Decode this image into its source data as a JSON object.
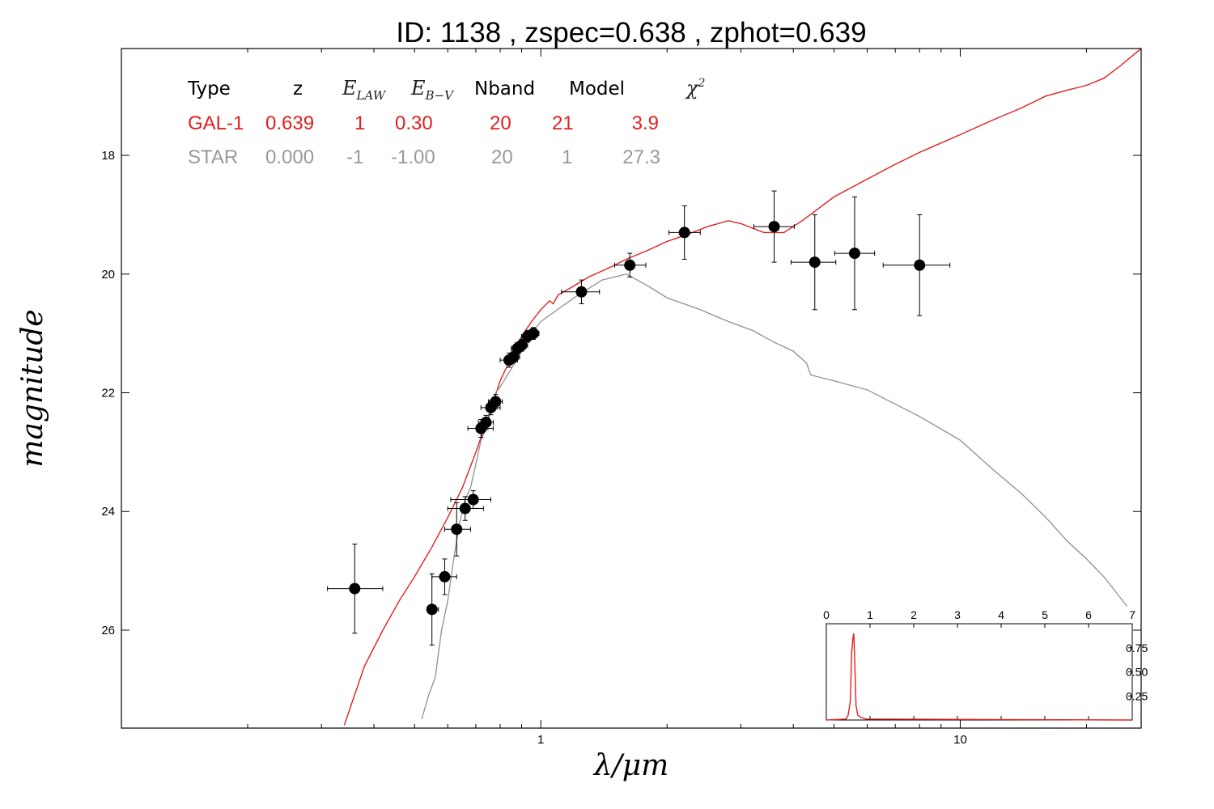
{
  "chart_data": {
    "type": "scatter",
    "title": "ID:  1138  , zspec=0.638 , zphot=0.639",
    "xlabel": "λ/μm",
    "ylabel": "magnitude",
    "xscale": "log",
    "xlim": [
      0.1,
      27
    ],
    "ylim": [
      27.65,
      16.2
    ],
    "y_inverted": true,
    "x_ticks": [
      1,
      10
    ],
    "x_tick_labels": [
      "1",
      "10"
    ],
    "y_ticks": [
      18,
      20,
      22,
      24,
      26
    ],
    "y_tick_labels": [
      "18",
      "20",
      "22",
      "24",
      "26"
    ],
    "grid": false,
    "colors": {
      "galaxy": "#e02020",
      "star": "#909090",
      "points": "#000000"
    },
    "fit_table": {
      "headers": [
        "Type",
        "z",
        "E_LAW",
        "E_B-V",
        "Nband",
        "Model",
        "χ2"
      ],
      "rows": [
        {
          "type": "GAL-1",
          "z": "0.639",
          "elaw": "1",
          "ebv": "0.30",
          "nband": "20",
          "model": "21",
          "chi2": "3.9",
          "color": "#e02020"
        },
        {
          "type": "STAR",
          "z": "0.000",
          "elaw": "-1",
          "ebv": "-1.00",
          "nband": "20",
          "model": "1",
          "chi2": "27.3",
          "color": "#999999"
        }
      ]
    },
    "series": [
      {
        "kind": "photometry",
        "points": [
          {
            "x": 0.36,
            "y": 25.3,
            "xerr": [
              0.31,
              0.42
            ],
            "yerr": 0.75
          },
          {
            "x": 0.55,
            "y": 25.65,
            "xerr": [
              0.54,
              0.57
            ],
            "yerr": 0.6
          },
          {
            "x": 0.59,
            "y": 25.1,
            "xerr": [
              0.55,
              0.63
            ],
            "yerr": 0.3
          },
          {
            "x": 0.63,
            "y": 24.3,
            "xerr": [
              0.59,
              0.68
            ],
            "yerr": 0.45
          },
          {
            "x": 0.66,
            "y": 23.95,
            "xerr": [
              0.6,
              0.73
            ],
            "yerr": 0.2
          },
          {
            "x": 0.69,
            "y": 23.8,
            "xerr": [
              0.61,
              0.76
            ],
            "yerr": 0.15
          },
          {
            "x": 0.72,
            "y": 22.6,
            "xerr": [
              0.67,
              0.77
            ],
            "yerr": 0.15
          },
          {
            "x": 0.74,
            "y": 22.5,
            "xerr": [
              0.71,
              0.77
            ],
            "yerr": 0.12
          },
          {
            "x": 0.76,
            "y": 22.25,
            "xerr": [
              0.72,
              0.8
            ],
            "yerr": 0.12
          },
          {
            "x": 0.78,
            "y": 22.15,
            "xerr": [
              0.75,
              0.81
            ],
            "yerr": 0.12
          },
          {
            "x": 0.84,
            "y": 21.45,
            "xerr": [
              0.8,
              0.88
            ],
            "yerr": 0.12
          },
          {
            "x": 0.86,
            "y": 21.4,
            "xerr": [
              0.83,
              0.89
            ],
            "yerr": 0.1
          },
          {
            "x": 0.88,
            "y": 21.25,
            "xerr": [
              0.85,
              0.91
            ],
            "yerr": 0.1
          },
          {
            "x": 0.9,
            "y": 21.2,
            "xerr": [
              0.87,
              0.93
            ],
            "yerr": 0.1
          },
          {
            "x": 0.93,
            "y": 21.05,
            "xerr": [
              0.9,
              0.96
            ],
            "yerr": 0.1
          },
          {
            "x": 0.96,
            "y": 21.0,
            "xerr": [
              0.93,
              0.99
            ],
            "yerr": 0.1
          },
          {
            "x": 1.25,
            "y": 20.3,
            "xerr": [
              1.12,
              1.38
            ],
            "yerr": 0.2
          },
          {
            "x": 1.63,
            "y": 19.85,
            "xerr": [
              1.5,
              1.78
            ],
            "yerr": 0.2
          },
          {
            "x": 2.2,
            "y": 19.3,
            "xerr": [
              2.02,
              2.4
            ],
            "yerr": 0.45
          },
          {
            "x": 3.6,
            "y": 19.2,
            "xerr": [
              3.22,
              4.02
            ],
            "yerr": 0.6
          },
          {
            "x": 4.5,
            "y": 19.8,
            "xerr": [
              3.95,
              5.05
            ],
            "yerr": 0.8
          },
          {
            "x": 5.6,
            "y": 19.65,
            "xerr": [
              5.02,
              6.25
            ],
            "yerr": 0.95
          },
          {
            "x": 8.0,
            "y": 19.85,
            "xerr": [
              6.55,
              9.45
            ],
            "yerr": 0.85
          }
        ]
      },
      {
        "kind": "model",
        "model_type": "galaxy",
        "color": "#e02020",
        "x": [
          0.34,
          0.38,
          0.42,
          0.46,
          0.5,
          0.55,
          0.6,
          0.65,
          0.7,
          0.75,
          0.8,
          0.85,
          0.9,
          0.95,
          1.0,
          1.05,
          1.07,
          1.1,
          1.2,
          1.3,
          1.45,
          1.6,
          1.8,
          2.0,
          2.2,
          2.5,
          2.8,
          3.0,
          3.4,
          3.8,
          4.2,
          5.0,
          6.0,
          7.0,
          8.0,
          10,
          12,
          14,
          16,
          18,
          20,
          22,
          24,
          27
        ],
        "y": [
          27.6,
          26.6,
          26.0,
          25.5,
          25.1,
          24.6,
          24.1,
          23.6,
          23.0,
          22.4,
          21.8,
          21.4,
          21.05,
          20.8,
          20.6,
          20.45,
          20.5,
          20.35,
          20.2,
          20.05,
          19.9,
          19.75,
          19.6,
          19.45,
          19.35,
          19.2,
          19.1,
          19.15,
          19.3,
          19.3,
          19.1,
          18.7,
          18.4,
          18.15,
          17.95,
          17.65,
          17.4,
          17.2,
          17.0,
          16.9,
          16.82,
          16.7,
          16.5,
          16.2
        ]
      },
      {
        "kind": "model",
        "model_type": "star",
        "color": "#909090",
        "x": [
          0.52,
          0.54,
          0.56,
          0.58,
          0.6,
          0.62,
          0.64,
          0.66,
          0.68,
          0.7,
          0.72,
          0.74,
          0.76,
          0.78,
          0.8,
          0.85,
          0.9,
          0.95,
          1.0,
          1.2,
          1.4,
          1.6,
          1.8,
          2.0,
          2.4,
          2.8,
          3.2,
          3.6,
          4.0,
          4.3,
          4.4,
          5.0,
          6.0,
          8.0,
          10,
          12,
          14,
          16,
          18,
          20,
          22,
          25
        ],
        "y": [
          27.5,
          27.1,
          26.8,
          26.0,
          25.5,
          24.8,
          24.2,
          23.8,
          23.6,
          23.2,
          22.8,
          22.6,
          22.3,
          22.0,
          21.9,
          21.6,
          21.3,
          21.0,
          20.8,
          20.4,
          20.1,
          20.0,
          20.2,
          20.4,
          20.6,
          20.8,
          20.95,
          21.15,
          21.3,
          21.5,
          21.7,
          21.8,
          21.95,
          22.4,
          22.8,
          23.3,
          23.7,
          24.1,
          24.5,
          24.8,
          25.1,
          25.6
        ]
      }
    ],
    "inset": {
      "type": "line",
      "description": "redshift probability",
      "xlim": [
        0,
        7
      ],
      "ylim": [
        0,
        1
      ],
      "x_ticks": [
        0,
        1,
        2,
        3,
        4,
        5,
        6,
        7
      ],
      "x_tick_labels": [
        "0",
        "1",
        "2",
        "3",
        "4",
        "5",
        "6",
        "7"
      ],
      "y_ticks": [
        0.25,
        0.5,
        0.75
      ],
      "y_tick_labels": [
        "0.25",
        "0.50",
        "0.75"
      ],
      "color": "#e02020",
      "x": [
        0,
        0.45,
        0.5,
        0.55,
        0.58,
        0.61,
        0.63,
        0.65,
        0.68,
        0.72,
        0.78,
        0.9,
        7.0
      ],
      "y": [
        0,
        0.01,
        0.05,
        0.2,
        0.7,
        0.85,
        0.9,
        0.6,
        0.15,
        0.05,
        0.03,
        0.01,
        0
      ]
    }
  }
}
